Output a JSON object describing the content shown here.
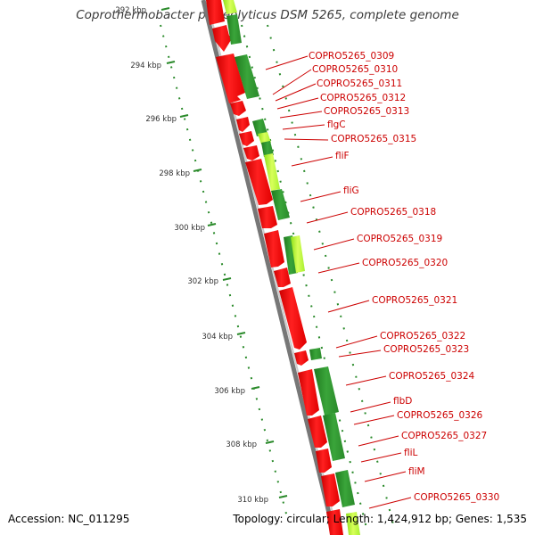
{
  "title": "Coprothermobacter proteolyticus DSM 5265, complete genome",
  "footer": {
    "accession": "Accession: NC_011295",
    "summary": "Topology: circular; Length: 1,424,912 bp; Genes: 1,535"
  },
  "scale_labels": [
    "292 kbp",
    "294 kbp",
    "296 kbp",
    "298 kbp",
    "300 kbp",
    "302 kbp",
    "304 kbp",
    "306 kbp",
    "308 kbp",
    "310 kbp"
  ],
  "genes": [
    "COPRO5265_0309",
    "COPRO5265_0310",
    "COPRO5265_0311",
    "COPRO5265_0312",
    "COPRO5265_0313",
    "flgC",
    "COPRO5265_0315",
    "fliF",
    "fliG",
    "COPRO5265_0318",
    "COPRO5265_0319",
    "COPRO5265_0320",
    "COPRO5265_0321",
    "COPRO5265_0322",
    "COPRO5265_0323",
    "COPRO5265_0324",
    "flbD",
    "COPRO5265_0326",
    "COPRO5265_0327",
    "fliL",
    "fliM",
    "COPRO5265_0330"
  ],
  "colors": {
    "gene_label": "#cc0000",
    "forward_gene": "#ff0000",
    "backbone": "#888888",
    "scale": "#2a8a2a",
    "feature_dark": "#2d8a2d",
    "feature_light": "#b5ff2a"
  }
}
